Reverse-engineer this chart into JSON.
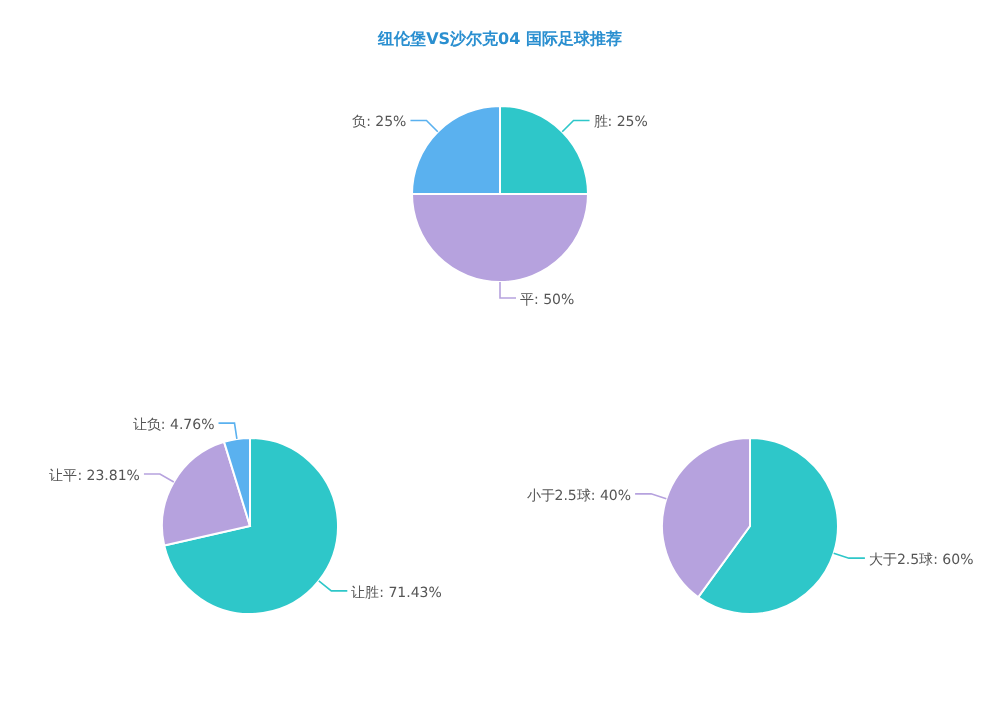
{
  "chart_data": [
    {
      "type": "pie",
      "title": "纽伦堡VS沙尔克04 国际足球推荐",
      "categories": [
        "胜",
        "平",
        "负"
      ],
      "values": [
        25,
        50,
        25
      ],
      "value_labels": [
        "25%",
        "50%",
        "25%"
      ],
      "colors": [
        "#2ec7c9",
        "#b6a2de",
        "#5ab1ef"
      ]
    },
    {
      "type": "pie",
      "categories": [
        "让胜",
        "让平",
        "让负"
      ],
      "values": [
        71.43,
        23.81,
        4.76
      ],
      "value_labels": [
        "71.43%",
        "23.81%",
        "4.76%"
      ],
      "colors": [
        "#2ec7c9",
        "#b6a2de",
        "#5ab1ef"
      ]
    },
    {
      "type": "pie",
      "categories": [
        "大于2.5球",
        "小于2.5球"
      ],
      "values": [
        60,
        40
      ],
      "value_labels": [
        "60%",
        "40%"
      ],
      "colors": [
        "#2ec7c9",
        "#b6a2de"
      ]
    }
  ]
}
